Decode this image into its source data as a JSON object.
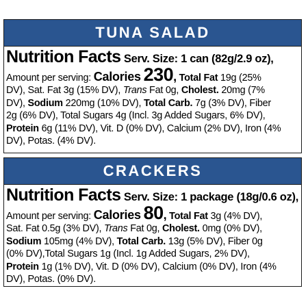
{
  "panels": [
    {
      "title": "TUNA SALAD",
      "nutrition_title": "Nutrition Facts",
      "serving_size": "Serv. Size: 1 can (82g/2.9 oz),",
      "amount_per_serving": "Amount per serving:",
      "calories_label": "Calories",
      "calories_value": "230",
      "total_fat_label": "Total Fat",
      "total_fat_value": "19g (25%",
      "total_fat_value_2": "DV),",
      "sat_fat": "Sat. Fat 3g (15% DV),",
      "trans_label": "Trans",
      "trans_value": "Fat 0g,",
      "cholest_label": "Cholest.",
      "cholest_value": "20mg (7%",
      "cholest_value_2": "DV),",
      "sodium_label": "Sodium",
      "sodium_value": "220mg (10% DV),",
      "total_carb_label": "Total Carb.",
      "total_carb_value": "7g (3% DV), Fiber",
      "fiber_value": "2g (6% DV), Total Sugars 4g (Incl. 3g Added Sugars, 6% DV),",
      "protein_label": "Protein",
      "protein_value": "6g (11% DV), Vit. D (0% DV), Calcium (2% DV), Iron (4%",
      "minerals_end": "DV), Potas. (4% DV)."
    },
    {
      "title": "CRACKERS",
      "nutrition_title": "Nutrition Facts",
      "serving_size": "Serv. Size: 1 package (18g/0.6 oz),",
      "amount_per_serving": "Amount per serving:",
      "calories_label": "Calories",
      "calories_value": "80",
      "total_fat_label": "Total Fat",
      "total_fat_value": "3g (4% DV),",
      "sat_fat": "Sat. Fat 0.5g (3% DV),",
      "trans_label": "Trans",
      "trans_value": "Fat 0g,",
      "cholest_label": "Cholest.",
      "cholest_value": "0mg (0% DV),",
      "sodium_label": "Sodium",
      "sodium_value": "105mg (4% DV),",
      "total_carb_label": "Total Carb.",
      "total_carb_value": "13g (5% DV), Fiber 0g",
      "fiber_value": "(0% DV),Total Sugars 1g (Incl. 1g Added Sugars, 2% DV),",
      "protein_label": "Protein",
      "protein_value": "1g (1% DV), Vit. D (0% DV), Calcium (0% DV), Iron (4%",
      "minerals_end": "DV), Potas. (0% DV)."
    }
  ],
  "colors": {
    "banner": "#2a5590",
    "banner_text": "#ffffff",
    "border": "#1a1a1a"
  }
}
